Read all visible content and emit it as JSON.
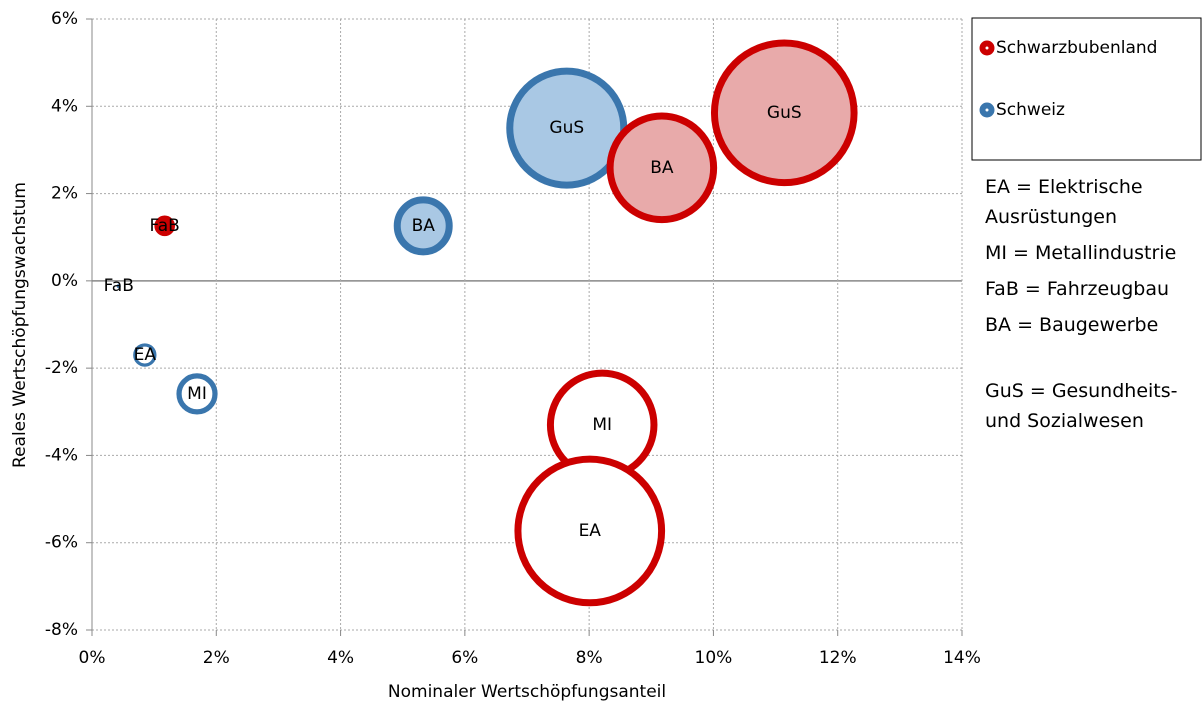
{
  "chart_data": {
    "type": "bubble",
    "xlabel": "Nominaler Wertschöpfungsanteil",
    "ylabel": "Reales  Wertschöpfungswachstum",
    "xlim": [
      0,
      14
    ],
    "xticks": [
      {
        "value": 0,
        "label": "0%"
      },
      {
        "value": 2,
        "label": "2%"
      },
      {
        "value": 4,
        "label": "4%"
      },
      {
        "value": 6,
        "label": "6%"
      },
      {
        "value": 8,
        "label": "8%"
      },
      {
        "value": 10,
        "label": "10%"
      },
      {
        "value": 12,
        "label": "12%"
      },
      {
        "value": 14,
        "label": "14%"
      }
    ],
    "ylim": [
      -8,
      6
    ],
    "yticks": [
      {
        "value": -8,
        "label": "-8%"
      },
      {
        "value": -6,
        "label": "-6%"
      },
      {
        "value": -4,
        "label": "-4%"
      },
      {
        "value": -2,
        "label": "-2%"
      },
      {
        "value": 0,
        "label": "0%"
      },
      {
        "value": 2,
        "label": "2%"
      },
      {
        "value": 4,
        "label": "4%"
      },
      {
        "value": 6,
        "label": "6%"
      }
    ],
    "grid": true,
    "legend": "right",
    "series": [
      {
        "name": "Schweiz",
        "color": "#3a76ad",
        "labels": [
          "FaB",
          "EA",
          "MI",
          "BA",
          "GuS"
        ],
        "x": [
          0.43,
          0.85,
          1.69,
          5.33,
          7.64
        ],
        "values": [
          -0.12,
          -1.7,
          -2.59,
          1.26,
          3.5
        ],
        "sizes": [
          0.16,
          1.7,
          4.4,
          8.4,
          36
        ],
        "fill_colors": [
          "#a9c8e4",
          "#ffffff",
          "#ffffff",
          "#a9c8e4",
          "#a9c8e4"
        ]
      },
      {
        "name": "Schwarzbubenland",
        "color": "#cc0000",
        "labels": [
          "FaB",
          "GuS",
          "BA",
          "MI",
          "EA"
        ],
        "x": [
          1.17,
          11.14,
          9.17,
          8.21,
          8.01
        ],
        "values": [
          1.26,
          3.85,
          2.59,
          -3.3,
          -5.73
        ],
        "sizes": [
          1.4,
          53,
          30,
          30,
          56
        ],
        "fill_colors": [
          "#cc0000",
          "#e8aaaa",
          "#e8aaaa",
          "#ffffff",
          "#ffffff"
        ]
      }
    ],
    "notes": [
      "EA = Elektrische Ausrüstungen",
      "MI = Metallindustrie",
      "FaB = Fahrzeugbau",
      "BA = Baugewerbe",
      "GuS = Gesundheits- und Sozialwesen"
    ]
  }
}
